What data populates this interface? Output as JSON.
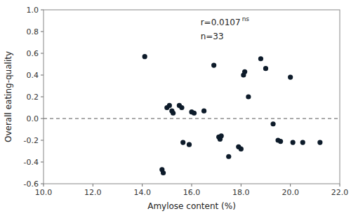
{
  "chart_data": {
    "type": "scatter",
    "x": [
      14.1,
      14.8,
      14.85,
      15.0,
      15.1,
      15.2,
      15.25,
      15.5,
      15.6,
      15.65,
      15.9,
      16.0,
      16.1,
      16.5,
      16.9,
      17.1,
      17.15,
      17.2,
      17.5,
      17.9,
      18.0,
      18.1,
      18.15,
      18.3,
      18.8,
      19.0,
      19.3,
      19.5,
      19.6,
      20.0,
      20.1,
      20.5,
      21.2
    ],
    "values": [
      0.57,
      -0.47,
      -0.5,
      0.1,
      0.12,
      0.07,
      0.05,
      0.12,
      0.1,
      -0.22,
      -0.24,
      0.06,
      0.05,
      0.07,
      0.49,
      -0.17,
      -0.19,
      -0.16,
      -0.35,
      -0.26,
      -0.28,
      0.4,
      0.43,
      0.2,
      0.55,
      0.46,
      -0.05,
      -0.2,
      -0.21,
      0.38,
      -0.22,
      -0.22,
      -0.22
    ],
    "xlabel": "Amylose content (%)",
    "ylabel": "Overall eating-quality",
    "xlim": [
      10.0,
      22.0
    ],
    "ylim": [
      -0.6,
      1.0
    ],
    "xticks": [
      {
        "value": 10,
        "label": "10.0"
      },
      {
        "value": 12,
        "label": "12.0"
      },
      {
        "value": 14,
        "label": "14.0"
      },
      {
        "value": 16,
        "label": "16.0"
      },
      {
        "value": 18,
        "label": "18.0"
      },
      {
        "value": 20,
        "label": "20.0"
      },
      {
        "value": 22,
        "label": "22.0"
      }
    ],
    "yticks": [
      -0.6,
      -0.4,
      -0.2,
      {
        "value": 0,
        "label": "0.0"
      },
      0.2,
      0.4,
      0.6,
      0.8,
      {
        "value": 1,
        "label": "1.0"
      }
    ],
    "color": "#0d1b2a",
    "hline": 0,
    "annotations": [
      "r=0.0107",
      "ns",
      "n=33"
    ],
    "grid": false
  }
}
